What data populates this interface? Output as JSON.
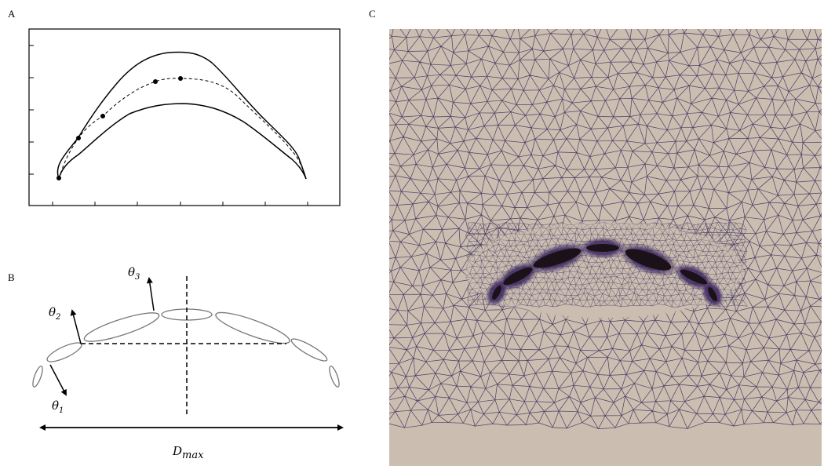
{
  "panels": [
    {
      "label": "A"
    },
    {
      "label": "B",
      "annotations": [
        {
          "symbol": "θ",
          "subscript": "3"
        },
        {
          "symbol": "θ",
          "subscript": "2"
        },
        {
          "symbol": "θ",
          "subscript": "1"
        },
        {
          "symbol": "D",
          "subscript": "max"
        }
      ]
    },
    {
      "label": "C"
    }
  ]
}
